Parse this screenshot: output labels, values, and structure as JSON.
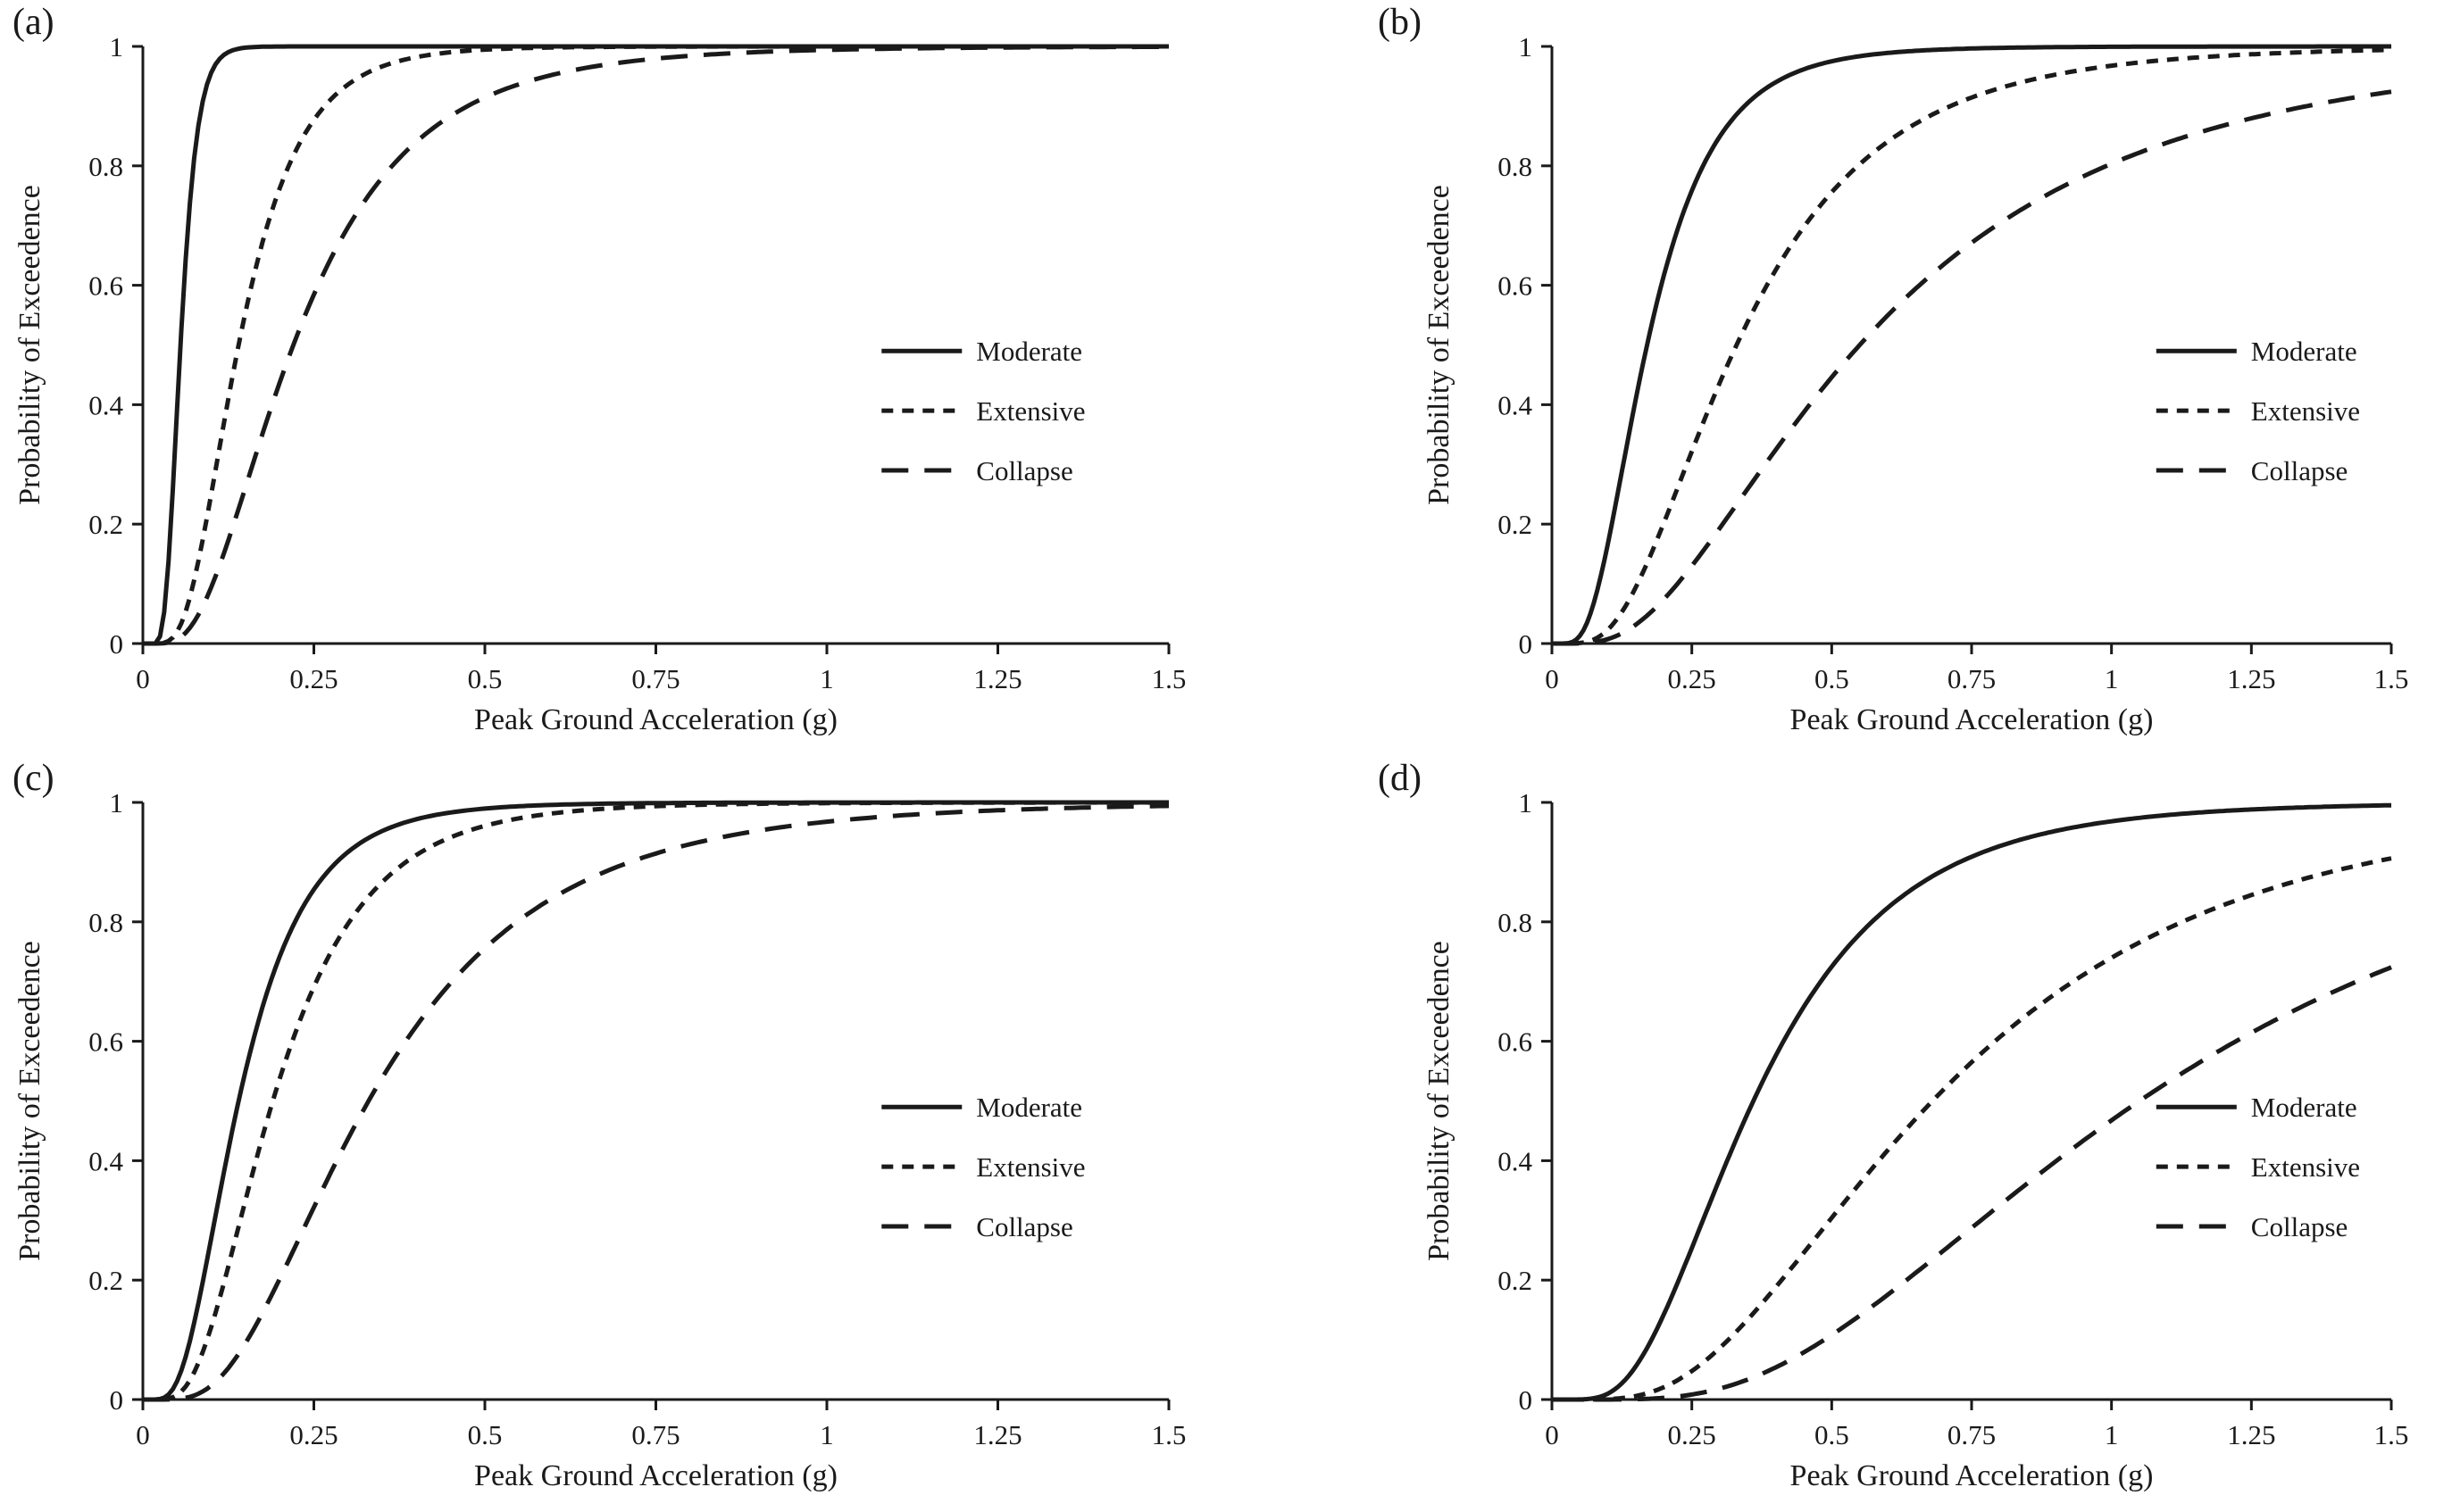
{
  "figure": {
    "background": "#ffffff",
    "ink": "#1a1a1a"
  },
  "chart_data": [
    {
      "type": "line",
      "panel_label": "(a)",
      "title": "",
      "xlabel": "Peak Ground Acceleration (g)",
      "ylabel": "Probability of Exceedence",
      "xlim": [
        0,
        1.5
      ],
      "ylim": [
        0,
        1
      ],
      "x_ticks": [
        "0",
        "0.25",
        "0.5",
        "0.75",
        "1",
        "1.25",
        "1.5"
      ],
      "y_ticks": [
        "0",
        "0.2",
        "0.4",
        "0.6",
        "0.8",
        "1"
      ],
      "grid": false,
      "legend_position": "right-middle",
      "color": "#1a1a1a",
      "series": [
        {
          "name": "Moderate",
          "line_style": "solid",
          "model": "lognormal_cdf",
          "median_g": 0.055,
          "beta": 0.35,
          "x": [
            0,
            0.25,
            0.5,
            0.75,
            1,
            1.25,
            1.5
          ],
          "y": [
            0,
            1.0,
            1.0,
            1.0,
            1.0,
            1.0,
            1.0
          ]
        },
        {
          "name": "Extensive",
          "line_style": "short-dash",
          "model": "lognormal_cdf",
          "median_g": 0.14,
          "beta": 0.5,
          "x": [
            0,
            0.25,
            0.5,
            0.75,
            1,
            1.25,
            1.5
          ],
          "y": [
            0,
            0.88,
            0.99,
            1.0,
            1.0,
            1.0,
            1.0
          ]
        },
        {
          "name": "Collapse",
          "line_style": "long-dash",
          "model": "lognormal_cdf",
          "median_g": 0.22,
          "beta": 0.6,
          "x": [
            0,
            0.25,
            0.5,
            0.75,
            1,
            1.25,
            1.5
          ],
          "y": [
            0,
            0.58,
            0.92,
            0.98,
            0.99,
            1.0,
            1.0
          ]
        }
      ]
    },
    {
      "type": "line",
      "panel_label": "(b)",
      "title": "",
      "xlabel": "Peak Ground Acceleration (g)",
      "ylabel": "Probability of Exceedence",
      "xlim": [
        0,
        1.5
      ],
      "ylim": [
        0,
        1
      ],
      "x_ticks": [
        "0",
        "0.25",
        "0.5",
        "0.75",
        "1",
        "1.25",
        "1.5"
      ],
      "y_ticks": [
        "0",
        "0.2",
        "0.4",
        "0.6",
        "0.8",
        "1"
      ],
      "grid": false,
      "legend_position": "right-middle",
      "color": "#1a1a1a",
      "series": [
        {
          "name": "Moderate",
          "line_style": "solid",
          "model": "lognormal_cdf",
          "median_g": 0.17,
          "beta": 0.55,
          "x": [
            0,
            0.25,
            0.5,
            0.75,
            1,
            1.25,
            1.5
          ],
          "y": [
            0,
            0.76,
            0.97,
            1.0,
            1.0,
            1.0,
            1.0
          ]
        },
        {
          "name": "Extensive",
          "line_style": "short-dash",
          "model": "lognormal_cdf",
          "median_g": 0.33,
          "beta": 0.6,
          "x": [
            0,
            0.25,
            0.5,
            0.75,
            1,
            1.25,
            1.5
          ],
          "y": [
            0,
            0.32,
            0.76,
            0.92,
            0.97,
            0.99,
            0.99
          ]
        },
        {
          "name": "Collapse",
          "line_style": "long-dash",
          "model": "lognormal_cdf",
          "median_g": 0.55,
          "beta": 0.7,
          "x": [
            0,
            0.25,
            0.5,
            0.75,
            1,
            1.25,
            1.5
          ],
          "y": [
            0,
            0.13,
            0.45,
            0.67,
            0.8,
            0.88,
            0.92
          ]
        }
      ]
    },
    {
      "type": "line",
      "panel_label": "(c)",
      "title": "",
      "xlabel": "Peak Ground Acceleration (g)",
      "ylabel": "Probability of Exceedence",
      "xlim": [
        0,
        1.5
      ],
      "ylim": [
        0,
        1
      ],
      "x_ticks": [
        "0",
        "0.25",
        "0.5",
        "0.75",
        "1",
        "1.25",
        "1.5"
      ],
      "y_ticks": [
        "0",
        "0.2",
        "0.4",
        "0.6",
        "0.8",
        "1"
      ],
      "grid": false,
      "legend_position": "right-middle",
      "color": "#1a1a1a",
      "series": [
        {
          "name": "Moderate",
          "line_style": "solid",
          "model": "lognormal_cdf",
          "median_g": 0.14,
          "beta": 0.55,
          "x": [
            0,
            0.25,
            0.5,
            0.75,
            1,
            1.25,
            1.5
          ],
          "y": [
            0,
            0.85,
            0.99,
            1.0,
            1.0,
            1.0,
            1.0
          ]
        },
        {
          "name": "Extensive",
          "line_style": "short-dash",
          "model": "lognormal_cdf",
          "median_g": 0.19,
          "beta": 0.55,
          "x": [
            0,
            0.25,
            0.5,
            0.75,
            1,
            1.25,
            1.5
          ],
          "y": [
            0,
            0.69,
            0.96,
            0.99,
            1.0,
            1.0,
            1.0
          ]
        },
        {
          "name": "Collapse",
          "line_style": "long-dash",
          "model": "lognormal_cdf",
          "median_g": 0.33,
          "beta": 0.6,
          "x": [
            0,
            0.25,
            0.5,
            0.75,
            1,
            1.25,
            1.5
          ],
          "y": [
            0,
            0.32,
            0.76,
            0.92,
            0.97,
            0.99,
            0.99
          ]
        }
      ]
    },
    {
      "type": "line",
      "panel_label": "(d)",
      "title": "",
      "xlabel": "Peak Ground Acceleration (g)",
      "ylabel": "Probability of Exceedence",
      "xlim": [
        0,
        1.5
      ],
      "ylim": [
        0,
        1
      ],
      "x_ticks": [
        "0",
        "0.25",
        "0.5",
        "0.75",
        "1",
        "1.25",
        "1.5"
      ],
      "y_ticks": [
        "0",
        "0.2",
        "0.4",
        "0.6",
        "0.8",
        "1"
      ],
      "grid": false,
      "legend_position": "right-middle",
      "color": "#1a1a1a",
      "series": [
        {
          "name": "Moderate",
          "line_style": "solid",
          "model": "lognormal_cdf",
          "median_g": 0.36,
          "beta": 0.55,
          "x": [
            0,
            0.25,
            0.5,
            0.75,
            1,
            1.25,
            1.5
          ],
          "y": [
            0,
            0.26,
            0.73,
            0.91,
            0.97,
            0.99,
            0.99
          ]
        },
        {
          "name": "Extensive",
          "line_style": "short-dash",
          "model": "lognormal_cdf",
          "median_g": 0.68,
          "beta": 0.6,
          "x": [
            0,
            0.25,
            0.5,
            0.75,
            1,
            1.25,
            1.5
          ],
          "y": [
            0,
            0.05,
            0.31,
            0.56,
            0.74,
            0.84,
            0.91
          ]
        },
        {
          "name": "Collapse",
          "line_style": "long-dash",
          "model": "lognormal_cdf",
          "median_g": 1.05,
          "beta": 0.6,
          "x": [
            0,
            0.25,
            0.5,
            0.75,
            1,
            1.25,
            1.5
          ],
          "y": [
            0,
            0.01,
            0.11,
            0.29,
            0.47,
            0.61,
            0.72
          ]
        }
      ]
    }
  ]
}
